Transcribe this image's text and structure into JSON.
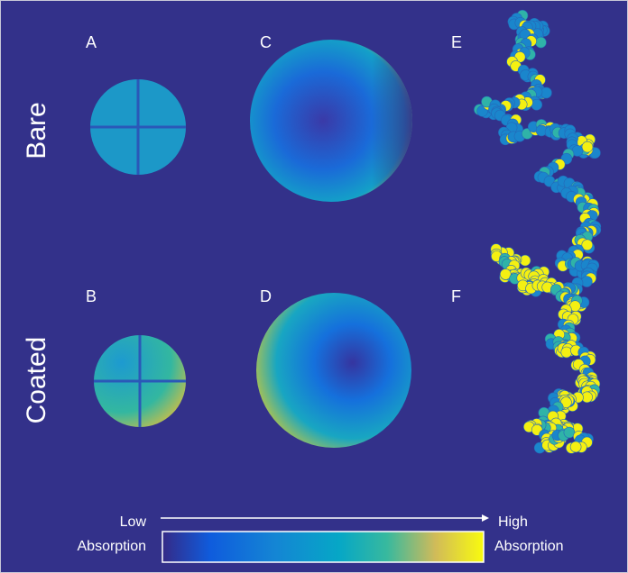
{
  "panels": {
    "a": "A",
    "b": "B",
    "c": "C",
    "d": "D",
    "e": "E",
    "f": "F"
  },
  "rows": {
    "top": "Bare",
    "bottom": "Coated"
  },
  "colorbar": {
    "low": [
      "Low",
      "Absorption"
    ],
    "high": [
      "High",
      "Absorption"
    ]
  }
}
